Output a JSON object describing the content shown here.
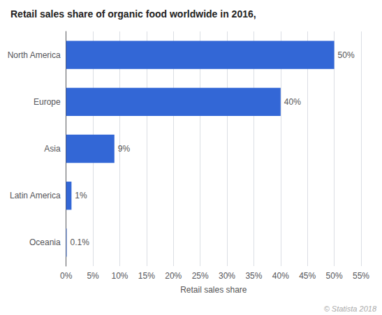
{
  "chart_data": {
    "type": "bar",
    "orientation": "horizontal",
    "title": "Retail sales share of organic food worldwide in 2016,",
    "categories": [
      "Oceania",
      "Latin America",
      "Asia",
      "Europe",
      "North America"
    ],
    "values": [
      0.1,
      1,
      9,
      40,
      50
    ],
    "value_labels": [
      "0.1%",
      "1%",
      "9%",
      "40%",
      "50%"
    ],
    "data_labels": true,
    "color": "#3367d6",
    "xlabel": "Retail sales share",
    "xlim": [
      0,
      55
    ],
    "xticks": [
      {
        "value": 0,
        "label": "0%"
      },
      {
        "value": 5,
        "label": "5%"
      },
      {
        "value": 10,
        "label": "10%"
      },
      {
        "value": 15,
        "label": "15%"
      },
      {
        "value": 20,
        "label": "20%"
      },
      {
        "value": 25,
        "label": "25%"
      },
      {
        "value": 30,
        "label": "30%"
      },
      {
        "value": 35,
        "label": "35%"
      },
      {
        "value": 40,
        "label": "40%"
      },
      {
        "value": 45,
        "label": "45%"
      },
      {
        "value": 50,
        "label": "50%"
      },
      {
        "value": 55,
        "label": "55%"
      }
    ],
    "grid": true,
    "annotations": [
      "© Statista 2018"
    ]
  }
}
